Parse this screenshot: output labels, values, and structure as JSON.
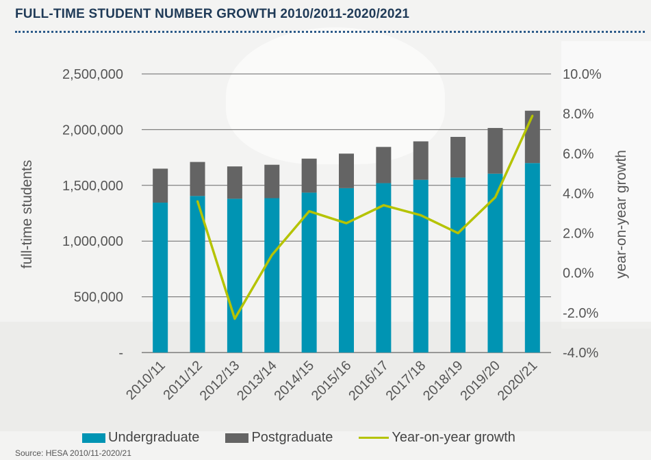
{
  "colors": {
    "undergraduate": "#0094b3",
    "postgraduate": "#646464",
    "growth": "#b5c300",
    "gridline": "#666666",
    "title": "#1f3a57"
  },
  "legend": {
    "undergraduate": "Undergraduate",
    "postgraduate": "Postgraduate",
    "growth": "Year-on-year growth"
  },
  "source": "Source: HESA 2010/11-2020/21",
  "chart_data": {
    "type": "bar",
    "title": "FULL-TIME STUDENT NUMBER GROWTH 2010/2011-2020/2021",
    "ylabel": "full-time students",
    "y2label": "year-on-year growth",
    "stacked": true,
    "ylim": [
      0,
      2500000
    ],
    "y2lim": [
      -4.0,
      10.0
    ],
    "yticks": [
      "-",
      "500,000",
      "1,000,000",
      "1,500,000",
      "2,000,000",
      "2,500,000"
    ],
    "y2ticks": [
      "-4.0%",
      "-2.0%",
      "0.0%",
      "2.0%",
      "4.0%",
      "6.0%",
      "8.0%",
      "10.0%"
    ],
    "categories": [
      "2010/11",
      "2011/12",
      "2012/13",
      "2013/14",
      "2014/15",
      "2015/16",
      "2016/17",
      "2017/18",
      "2018/19",
      "2019/20",
      "2020/21"
    ],
    "series": [
      {
        "name": "Undergraduate",
        "type": "bar",
        "axis": "left",
        "values": [
          1345000,
          1405000,
          1380000,
          1385000,
          1435000,
          1475000,
          1520000,
          1550000,
          1570000,
          1605000,
          1700000
        ]
      },
      {
        "name": "Postgraduate",
        "type": "bar",
        "axis": "left",
        "values": [
          305000,
          305000,
          290000,
          300000,
          305000,
          310000,
          325000,
          345000,
          365000,
          410000,
          470000
        ]
      },
      {
        "name": "Year-on-year growth",
        "type": "line",
        "axis": "right",
        "values": [
          null,
          3.6,
          -2.3,
          0.9,
          3.1,
          2.5,
          3.4,
          2.9,
          2.0,
          3.8,
          7.9
        ]
      }
    ],
    "legend_position": "bottom",
    "grid": true
  }
}
